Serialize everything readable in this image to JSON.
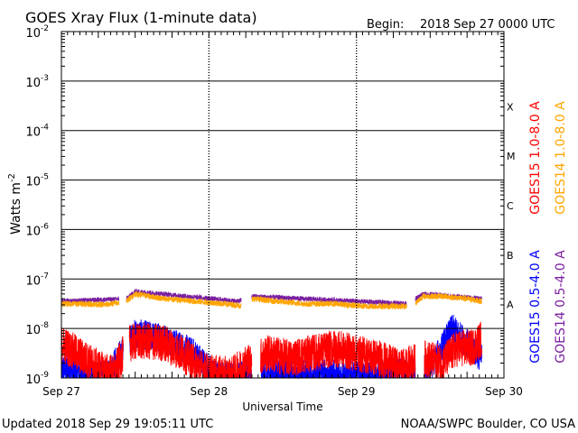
{
  "header": {
    "title": "GOES Xray Flux (1-minute data)",
    "begin_label": "Begin:",
    "begin_value": "2018 Sep 27 0000 UTC"
  },
  "footer": {
    "updated": "Updated 2018 Sep 29 19:05:11 UTC",
    "credit": "NOAA/SWPC Boulder, CO USA"
  },
  "chart_data": {
    "type": "line",
    "title": "GOES Xray Flux (1-minute data)",
    "xlabel": "Universal Time",
    "ylabel": "Watts m",
    "ylabel_superscript": "-2",
    "y_scale": "log",
    "ylim": [
      1e-09,
      0.01
    ],
    "xlim": [
      0,
      3
    ],
    "x_unit": "days since 2018 Sep 27 0000 UTC",
    "x_ticks": [
      {
        "x": 0,
        "label": "Sep 27"
      },
      {
        "x": 1,
        "label": "Sep 28"
      },
      {
        "x": 2,
        "label": "Sep 29"
      },
      {
        "x": 3,
        "label": "Sep 30"
      }
    ],
    "y_ticks": [
      {
        "exp": -2,
        "base": "10",
        "sup": "-2"
      },
      {
        "exp": -3,
        "base": "10",
        "sup": "-3"
      },
      {
        "exp": -4,
        "base": "10",
        "sup": "-4"
      },
      {
        "exp": -5,
        "base": "10",
        "sup": "-5"
      },
      {
        "exp": -6,
        "base": "10",
        "sup": "-6"
      },
      {
        "exp": -7,
        "base": "10",
        "sup": "-7"
      },
      {
        "exp": -8,
        "base": "10",
        "sup": "-8"
      },
      {
        "exp": -9,
        "base": "10",
        "sup": "-9"
      }
    ],
    "flare_classes": [
      {
        "label": "X",
        "exp": -3.5
      },
      {
        "label": "M",
        "exp": -4.5
      },
      {
        "label": "C",
        "exp": -5.5
      },
      {
        "label": "B",
        "exp": -6.5
      },
      {
        "label": "A",
        "exp": -7.5
      }
    ],
    "grid": "horizontal lines at each decade from 1e-8 to 1e-3; dotted vertical day separators",
    "legend_position": "right side, vertical",
    "legend": [
      {
        "name": "GOES15 1.0-8.0 A",
        "color": "#ff0000"
      },
      {
        "name": "GOES14 1.0-8.0 A",
        "color": "#ffa500"
      },
      {
        "name": "GOES15 0.5-4.0 A",
        "color": "#0000ff"
      },
      {
        "name": "GOES14 0.5-4.0 A",
        "color": "#7a1fa0"
      }
    ],
    "series": [
      {
        "name": "GOES15 1.0-8.0 A",
        "color": "#ff0000",
        "log_flux_points": [
          [
            0.0,
            -8.3
          ],
          [
            0.1,
            -8.5
          ],
          [
            0.2,
            -8.7
          ],
          [
            0.28,
            -8.85
          ],
          [
            0.36,
            -8.9
          ],
          [
            0.45,
            -8.3
          ],
          [
            0.55,
            -8.25
          ],
          [
            0.7,
            -8.3
          ],
          [
            0.82,
            -8.5
          ],
          [
            0.9,
            -8.7
          ],
          [
            1.0,
            -8.9
          ],
          [
            1.15,
            -8.95
          ],
          [
            1.25,
            -8.7
          ],
          [
            1.4,
            -8.5
          ],
          [
            1.55,
            -8.6
          ],
          [
            1.7,
            -8.5
          ],
          [
            1.85,
            -8.4
          ],
          [
            2.0,
            -8.5
          ],
          [
            2.15,
            -8.6
          ],
          [
            2.3,
            -8.8
          ],
          [
            2.45,
            -8.6
          ],
          [
            2.58,
            -8.7
          ],
          [
            2.68,
            -8.4
          ],
          [
            2.78,
            -8.4
          ],
          [
            2.85,
            -8.2
          ]
        ],
        "gaps": [
          [
            0.42,
            0.46
          ],
          [
            1.29,
            1.35
          ],
          [
            2.4,
            2.46
          ]
        ]
      },
      {
        "name": "GOES14 1.0-8.0 A",
        "color": "#ffa500",
        "log_flux_points": [
          [
            0.0,
            -7.5
          ],
          [
            0.15,
            -7.5
          ],
          [
            0.3,
            -7.52
          ],
          [
            0.44,
            -7.45
          ],
          [
            0.5,
            -7.3
          ],
          [
            0.7,
            -7.4
          ],
          [
            0.9,
            -7.45
          ],
          [
            1.1,
            -7.5
          ],
          [
            1.25,
            -7.55
          ],
          [
            1.3,
            -7.4
          ],
          [
            1.45,
            -7.45
          ],
          [
            1.65,
            -7.5
          ],
          [
            1.85,
            -7.5
          ],
          [
            2.05,
            -7.55
          ],
          [
            2.25,
            -7.55
          ],
          [
            2.38,
            -7.55
          ],
          [
            2.45,
            -7.35
          ],
          [
            2.6,
            -7.35
          ],
          [
            2.75,
            -7.4
          ],
          [
            2.85,
            -7.45
          ]
        ],
        "gaps": [
          [
            0.39,
            0.44
          ],
          [
            1.22,
            1.29
          ],
          [
            2.34,
            2.4
          ]
        ]
      },
      {
        "name": "GOES15 0.5-4.0 A",
        "color": "#0000ff",
        "log_flux_points": [
          [
            0.0,
            -8.8
          ],
          [
            0.15,
            -8.9
          ],
          [
            0.3,
            -8.95
          ],
          [
            0.5,
            -8.1
          ],
          [
            0.7,
            -8.2
          ],
          [
            0.9,
            -8.5
          ],
          [
            1.05,
            -8.95
          ],
          [
            1.4,
            -8.95
          ],
          [
            1.7,
            -8.9
          ],
          [
            2.0,
            -8.95
          ],
          [
            2.2,
            -8.95
          ],
          [
            2.5,
            -8.8
          ],
          [
            2.65,
            -8.0
          ],
          [
            2.75,
            -8.3
          ],
          [
            2.85,
            -8.6
          ]
        ],
        "gaps": [
          [
            0.42,
            0.46
          ],
          [
            1.29,
            1.35
          ],
          [
            2.4,
            2.46
          ]
        ]
      },
      {
        "name": "GOES14 0.5-4.0 A",
        "color": "#7a1fa0",
        "log_flux_points": [
          [
            0.0,
            -7.45
          ],
          [
            0.44,
            -7.4
          ],
          [
            0.5,
            -7.25
          ],
          [
            1.2,
            -7.45
          ],
          [
            1.3,
            -7.35
          ],
          [
            2.35,
            -7.5
          ],
          [
            2.45,
            -7.3
          ],
          [
            2.85,
            -7.4
          ]
        ],
        "gaps": [
          [
            0.39,
            0.44
          ],
          [
            1.22,
            1.29
          ],
          [
            2.34,
            2.4
          ]
        ]
      }
    ]
  }
}
